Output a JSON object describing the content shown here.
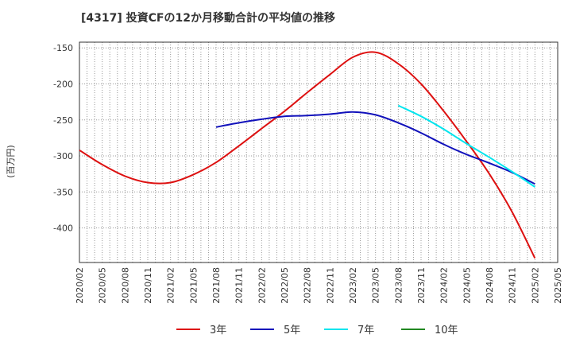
{
  "chart_data": {
    "type": "line",
    "title": "[4317]  投資CFの12か月移動合計の平均値の推移",
    "ylabel": "(百万円)",
    "xlabel": "",
    "ylim": [
      -448,
      -142
    ],
    "yticks": [
      -150,
      -200,
      -250,
      -300,
      -350,
      -400
    ],
    "x_start": "2020/02",
    "x_end": "2025/05",
    "x_tick_labels": [
      "2020/02",
      "2020/05",
      "2020/08",
      "2020/11",
      "2021/02",
      "2021/05",
      "2021/08",
      "2021/11",
      "2022/02",
      "2022/05",
      "2022/08",
      "2022/11",
      "2023/02",
      "2023/05",
      "2023/08",
      "2023/11",
      "2024/02",
      "2024/05",
      "2024/08",
      "2024/11",
      "2025/02",
      "2025/05"
    ],
    "grid": true,
    "legend_position": "bottom",
    "series": [
      {
        "name": "3年",
        "color": "#dd1111",
        "points": [
          [
            "2020/02",
            -292
          ],
          [
            "2020/05",
            -312
          ],
          [
            "2020/08",
            -328
          ],
          [
            "2020/11",
            -337
          ],
          [
            "2021/02",
            -337
          ],
          [
            "2021/05",
            -326
          ],
          [
            "2021/08",
            -309
          ],
          [
            "2021/11",
            -286
          ],
          [
            "2022/02",
            -262
          ],
          [
            "2022/05",
            -238
          ],
          [
            "2022/08",
            -212
          ],
          [
            "2022/11",
            -187
          ],
          [
            "2023/02",
            -163
          ],
          [
            "2023/05",
            -156
          ],
          [
            "2023/08",
            -172
          ],
          [
            "2023/11",
            -200
          ],
          [
            "2024/02",
            -238
          ],
          [
            "2024/05",
            -280
          ],
          [
            "2024/08",
            -325
          ],
          [
            "2024/11",
            -378
          ],
          [
            "2025/02",
            -442
          ]
        ]
      },
      {
        "name": "5年",
        "color": "#1111bb",
        "points": [
          [
            "2021/08",
            -260
          ],
          [
            "2021/11",
            -254
          ],
          [
            "2022/02",
            -249
          ],
          [
            "2022/05",
            -245
          ],
          [
            "2022/08",
            -244
          ],
          [
            "2022/11",
            -242
          ],
          [
            "2023/02",
            -239
          ],
          [
            "2023/05",
            -243
          ],
          [
            "2023/08",
            -254
          ],
          [
            "2023/11",
            -268
          ],
          [
            "2024/02",
            -284
          ],
          [
            "2024/05",
            -298
          ],
          [
            "2024/08",
            -310
          ],
          [
            "2024/11",
            -323
          ],
          [
            "2025/02",
            -339
          ]
        ]
      },
      {
        "name": "7年",
        "color": "#00e5ee",
        "points": [
          [
            "2023/08",
            -230
          ],
          [
            "2023/11",
            -245
          ],
          [
            "2024/02",
            -263
          ],
          [
            "2024/05",
            -283
          ],
          [
            "2024/08",
            -302
          ],
          [
            "2024/11",
            -322
          ],
          [
            "2025/02",
            -343
          ]
        ]
      },
      {
        "name": "10年",
        "color": "#228822",
        "points": []
      }
    ]
  }
}
